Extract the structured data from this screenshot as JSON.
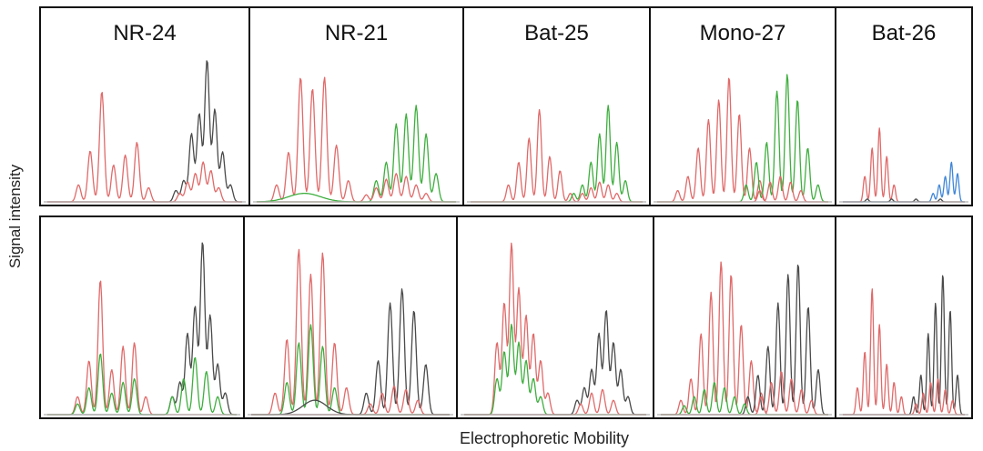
{
  "chart_data": {
    "type": "line",
    "xlabel": "Electrophoretic Mobility",
    "ylabel": "Signal intensity",
    "markers": [
      "NR-24",
      "NR-21",
      "Bat-25",
      "Mono-27",
      "Bat-26"
    ],
    "rows": 2,
    "colors": {
      "red": "#e06a6a",
      "green": "#3fae3f",
      "black": "#4a4a4a",
      "blue": "#3f86d8"
    },
    "panels": [
      {
        "row": 0,
        "marker": "NR-24",
        "title": "NR-24",
        "peaks": [
          {
            "color": "black",
            "x": [
              0.66,
              0.7,
              0.74,
              0.78,
              0.82,
              0.86,
              0.9,
              0.94
            ],
            "y": [
              0.08,
              0.15,
              0.48,
              0.62,
              1.0,
              0.65,
              0.35,
              0.12
            ]
          },
          {
            "color": "red",
            "x": [
              0.16,
              0.22,
              0.28,
              0.34,
              0.4,
              0.46,
              0.52
            ],
            "y": [
              0.12,
              0.36,
              0.78,
              0.26,
              0.33,
              0.42,
              0.1
            ]
          },
          {
            "color": "red",
            "x": [
              0.68,
              0.72,
              0.76,
              0.8,
              0.84,
              0.88
            ],
            "y": [
              0.06,
              0.14,
              0.2,
              0.28,
              0.22,
              0.1
            ]
          }
        ]
      },
      {
        "row": 0,
        "marker": "NR-21",
        "title": "NR-21",
        "peaks": [
          {
            "color": "red",
            "x": [
              0.1,
              0.16,
              0.22,
              0.28,
              0.34,
              0.4,
              0.46
            ],
            "y": [
              0.12,
              0.35,
              0.88,
              0.8,
              0.88,
              0.4,
              0.15
            ]
          },
          {
            "color": "green",
            "x": [
              0.6,
              0.65,
              0.7,
              0.75,
              0.8,
              0.85,
              0.9
            ],
            "y": [
              0.15,
              0.28,
              0.55,
              0.62,
              0.68,
              0.48,
              0.2
            ]
          },
          {
            "color": "red",
            "x": [
              0.55,
              0.6,
              0.65,
              0.7,
              0.75,
              0.8,
              0.85
            ],
            "y": [
              0.05,
              0.1,
              0.16,
              0.2,
              0.18,
              0.12,
              0.06
            ]
          },
          {
            "color": "green",
            "x": [
              0.24
            ],
            "y": [
              0.06
            ],
            "w": 0.08
          }
        ]
      },
      {
        "row": 0,
        "marker": "Bat-25",
        "title": "Bat-25",
        "peaks": [
          {
            "color": "red",
            "x": [
              0.22,
              0.28,
              0.34,
              0.4,
              0.46,
              0.52,
              0.58
            ],
            "y": [
              0.12,
              0.28,
              0.45,
              0.65,
              0.32,
              0.22,
              0.06
            ]
          },
          {
            "color": "green",
            "x": [
              0.6,
              0.65,
              0.7,
              0.75,
              0.8,
              0.85,
              0.9
            ],
            "y": [
              0.06,
              0.12,
              0.28,
              0.48,
              0.68,
              0.42,
              0.15
            ]
          },
          {
            "color": "red",
            "x": [
              0.65,
              0.7,
              0.75,
              0.8,
              0.85
            ],
            "y": [
              0.06,
              0.1,
              0.14,
              0.12,
              0.06
            ]
          }
        ]
      },
      {
        "row": 0,
        "marker": "Mono-27",
        "title": "Mono-27",
        "peaks": [
          {
            "color": "red",
            "x": [
              0.12,
              0.18,
              0.24,
              0.3,
              0.36,
              0.42,
              0.48,
              0.54,
              0.6
            ],
            "y": [
              0.08,
              0.18,
              0.38,
              0.58,
              0.72,
              0.88,
              0.62,
              0.38,
              0.15
            ]
          },
          {
            "color": "green",
            "x": [
              0.52,
              0.58,
              0.64,
              0.7,
              0.76,
              0.82,
              0.88,
              0.94
            ],
            "y": [
              0.12,
              0.28,
              0.42,
              0.78,
              0.9,
              0.72,
              0.38,
              0.12
            ]
          },
          {
            "color": "red",
            "x": [
              0.6,
              0.66,
              0.72,
              0.78,
              0.84
            ],
            "y": [
              0.08,
              0.14,
              0.18,
              0.14,
              0.08
            ]
          }
        ]
      },
      {
        "row": 0,
        "marker": "Bat-26",
        "title": "Bat-26",
        "peaks": [
          {
            "color": "red",
            "x": [
              0.18,
              0.24,
              0.3,
              0.36,
              0.42
            ],
            "y": [
              0.18,
              0.38,
              0.52,
              0.32,
              0.12
            ]
          },
          {
            "color": "blue",
            "x": [
              0.74,
              0.79,
              0.84,
              0.89,
              0.94
            ],
            "y": [
              0.06,
              0.12,
              0.18,
              0.28,
              0.2
            ]
          },
          {
            "color": "black",
            "x": [
              0.2,
              0.4,
              0.6,
              0.8
            ],
            "y": [
              0.02,
              0.02,
              0.02,
              0.02
            ]
          }
        ]
      },
      {
        "row": 1,
        "marker": "NR-24",
        "peaks": [
          {
            "color": "black",
            "x": [
              0.66,
              0.7,
              0.74,
              0.78,
              0.82,
              0.86,
              0.9,
              0.94
            ],
            "y": [
              0.1,
              0.18,
              0.45,
              0.6,
              0.96,
              0.55,
              0.28,
              0.12
            ]
          },
          {
            "color": "red",
            "x": [
              0.16,
              0.22,
              0.28,
              0.34,
              0.4,
              0.46,
              0.52
            ],
            "y": [
              0.1,
              0.3,
              0.75,
              0.25,
              0.38,
              0.4,
              0.1
            ]
          },
          {
            "color": "green",
            "x": [
              0.16,
              0.22,
              0.28,
              0.34,
              0.4,
              0.46,
              0.66,
              0.72,
              0.78,
              0.84,
              0.9
            ],
            "y": [
              0.06,
              0.15,
              0.34,
              0.12,
              0.18,
              0.2,
              0.1,
              0.2,
              0.32,
              0.24,
              0.1
            ]
          }
        ]
      },
      {
        "row": 1,
        "marker": "NR-21",
        "peaks": [
          {
            "color": "red",
            "x": [
              0.12,
              0.18,
              0.24,
              0.3,
              0.36,
              0.42,
              0.48
            ],
            "y": [
              0.12,
              0.42,
              0.92,
              0.78,
              0.9,
              0.4,
              0.15
            ]
          },
          {
            "color": "green",
            "x": [
              0.18,
              0.24,
              0.3,
              0.36,
              0.42
            ],
            "y": [
              0.18,
              0.4,
              0.5,
              0.38,
              0.15
            ]
          },
          {
            "color": "black",
            "x": [
              0.58,
              0.64,
              0.7,
              0.76,
              0.82,
              0.88
            ],
            "y": [
              0.12,
              0.3,
              0.62,
              0.7,
              0.58,
              0.28
            ]
          },
          {
            "color": "red",
            "x": [
              0.6,
              0.66,
              0.72,
              0.78,
              0.84
            ],
            "y": [
              0.06,
              0.12,
              0.16,
              0.14,
              0.08
            ]
          },
          {
            "color": "black",
            "x": [
              0.32
            ],
            "y": [
              0.08
            ],
            "w": 0.06
          }
        ]
      },
      {
        "row": 1,
        "marker": "Bat-25",
        "peaks": [
          {
            "color": "red",
            "x": [
              0.18,
              0.22,
              0.26,
              0.3,
              0.34,
              0.38,
              0.42,
              0.46
            ],
            "y": [
              0.4,
              0.62,
              0.95,
              0.7,
              0.55,
              0.45,
              0.3,
              0.12
            ]
          },
          {
            "color": "green",
            "x": [
              0.18,
              0.22,
              0.26,
              0.3,
              0.34,
              0.38,
              0.42
            ],
            "y": [
              0.2,
              0.35,
              0.5,
              0.4,
              0.3,
              0.2,
              0.1
            ]
          },
          {
            "color": "black",
            "x": [
              0.62,
              0.66,
              0.7,
              0.74,
              0.78,
              0.82,
              0.86,
              0.9
            ],
            "y": [
              0.08,
              0.15,
              0.25,
              0.45,
              0.58,
              0.4,
              0.25,
              0.1
            ]
          },
          {
            "color": "red",
            "x": [
              0.64,
              0.7,
              0.76,
              0.82
            ],
            "y": [
              0.06,
              0.12,
              0.14,
              0.08
            ]
          }
        ]
      },
      {
        "row": 1,
        "marker": "Mono-27",
        "peaks": [
          {
            "color": "red",
            "x": [
              0.12,
              0.18,
              0.24,
              0.3,
              0.36,
              0.42,
              0.48,
              0.54,
              0.6
            ],
            "y": [
              0.08,
              0.2,
              0.45,
              0.68,
              0.85,
              0.78,
              0.5,
              0.3,
              0.12
            ]
          },
          {
            "color": "black",
            "x": [
              0.52,
              0.58,
              0.64,
              0.7,
              0.76,
              0.82,
              0.88,
              0.94
            ],
            "y": [
              0.1,
              0.22,
              0.38,
              0.62,
              0.78,
              0.84,
              0.6,
              0.25
            ]
          },
          {
            "color": "green",
            "x": [
              0.14,
              0.2,
              0.26,
              0.32,
              0.38,
              0.44,
              0.5
            ],
            "y": [
              0.05,
              0.1,
              0.14,
              0.18,
              0.15,
              0.1,
              0.06
            ]
          },
          {
            "color": "red",
            "x": [
              0.6,
              0.66,
              0.72,
              0.78,
              0.84,
              0.9
            ],
            "y": [
              0.1,
              0.18,
              0.24,
              0.2,
              0.14,
              0.08
            ]
          }
        ]
      },
      {
        "row": 1,
        "marker": "Bat-26",
        "peaks": [
          {
            "color": "red",
            "x": [
              0.12,
              0.18,
              0.24,
              0.3,
              0.36,
              0.42,
              0.48
            ],
            "y": [
              0.15,
              0.35,
              0.7,
              0.5,
              0.28,
              0.18,
              0.1
            ]
          },
          {
            "color": "black",
            "x": [
              0.58,
              0.64,
              0.7,
              0.76,
              0.82,
              0.88,
              0.94
            ],
            "y": [
              0.1,
              0.22,
              0.45,
              0.62,
              0.78,
              0.58,
              0.22
            ]
          },
          {
            "color": "red",
            "x": [
              0.6,
              0.66,
              0.72,
              0.78,
              0.84,
              0.9
            ],
            "y": [
              0.06,
              0.12,
              0.18,
              0.2,
              0.14,
              0.08
            ]
          }
        ]
      }
    ]
  }
}
